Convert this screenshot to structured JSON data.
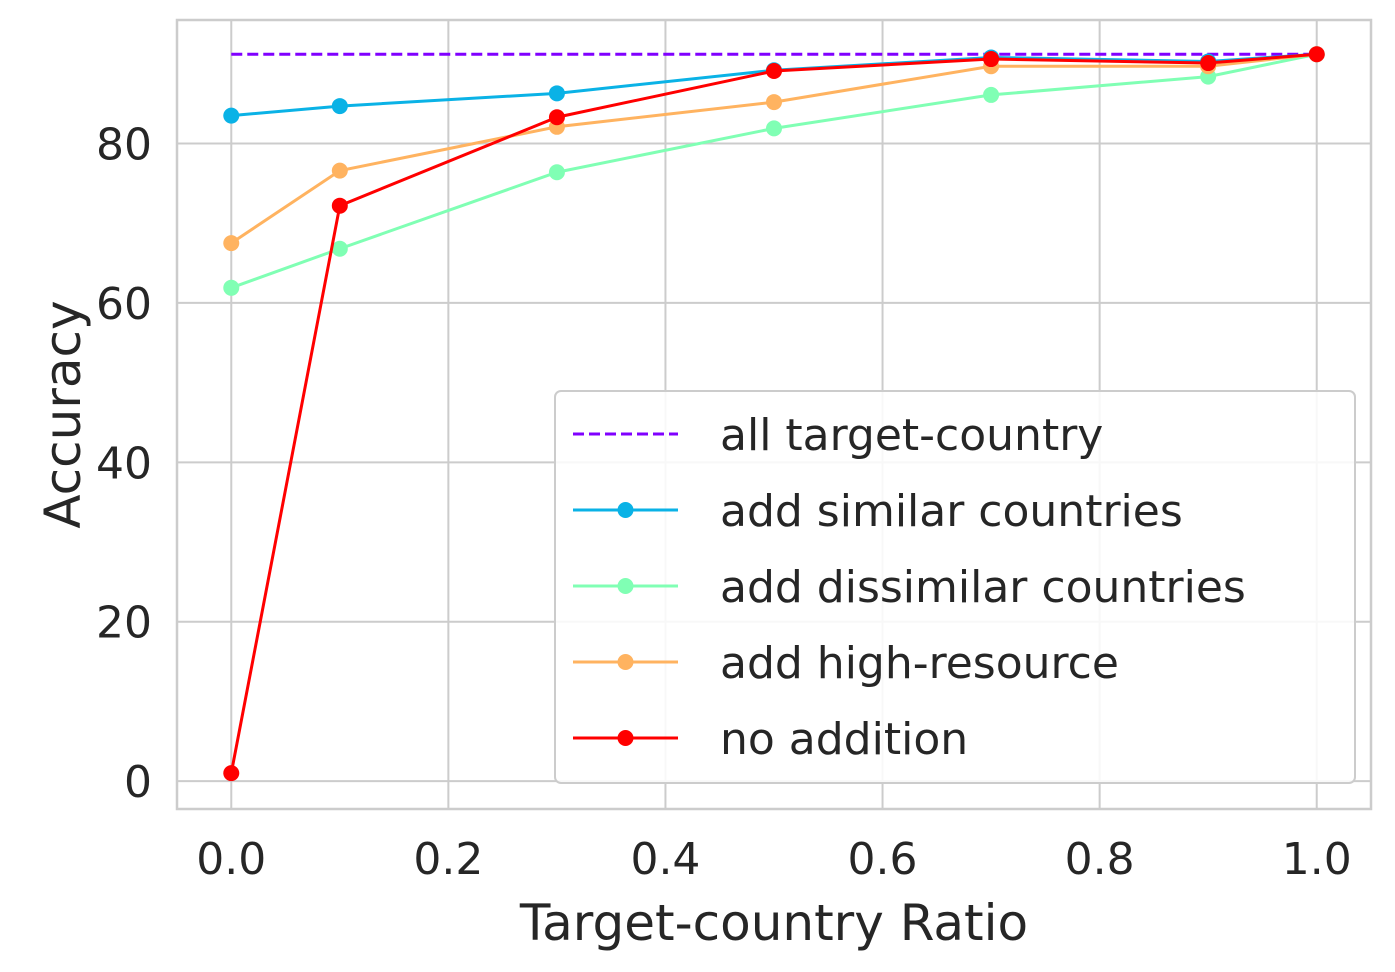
{
  "chart_data": {
    "type": "line",
    "title": "",
    "xlabel": "Target-country Ratio",
    "ylabel": "Accuracy",
    "xlim": [
      -0.05,
      1.05
    ],
    "ylim": [
      -3.5,
      95.5
    ],
    "xticks": [
      0.0,
      0.2,
      0.4,
      0.6,
      0.8,
      1.0
    ],
    "xtick_labels": [
      "0.0",
      "0.2",
      "0.4",
      "0.6",
      "0.8",
      "1.0"
    ],
    "yticks": [
      0,
      20,
      40,
      60,
      80
    ],
    "ytick_labels": [
      "0",
      "20",
      "40",
      "60",
      "80"
    ],
    "grid": true,
    "legend_position": "lower-right",
    "reference_line": {
      "name": "all target-country",
      "value": 91.2,
      "x_range": [
        0.0,
        1.0
      ],
      "color": "#8000ff",
      "style": "dashed"
    },
    "series": [
      {
        "name": "add similar countries",
        "color": "#0ab2e6",
        "x": [
          0.0,
          0.1,
          0.3,
          0.5,
          0.7,
          0.9,
          1.0
        ],
        "y": [
          83.5,
          84.7,
          86.3,
          89.2,
          90.8,
          90.3,
          91.2
        ]
      },
      {
        "name": "add dissimilar countries",
        "color": "#80ffb4",
        "x": [
          0.0,
          0.1,
          0.3,
          0.5,
          0.7,
          0.9,
          1.0
        ],
        "y": [
          61.9,
          66.8,
          76.4,
          81.9,
          86.1,
          88.4,
          91.2
        ]
      },
      {
        "name": "add high-resource",
        "color": "#ffb360",
        "x": [
          0.0,
          0.1,
          0.3,
          0.5,
          0.7,
          0.9,
          1.0
        ],
        "y": [
          67.5,
          76.6,
          82.1,
          85.2,
          89.7,
          89.7,
          91.2
        ]
      },
      {
        "name": "no addition",
        "color": "#ff0000",
        "x": [
          0.0,
          0.1,
          0.3,
          0.5,
          0.7,
          0.9,
          1.0
        ],
        "y": [
          1.0,
          72.2,
          83.3,
          89.1,
          90.6,
          90.1,
          91.2
        ]
      }
    ]
  }
}
